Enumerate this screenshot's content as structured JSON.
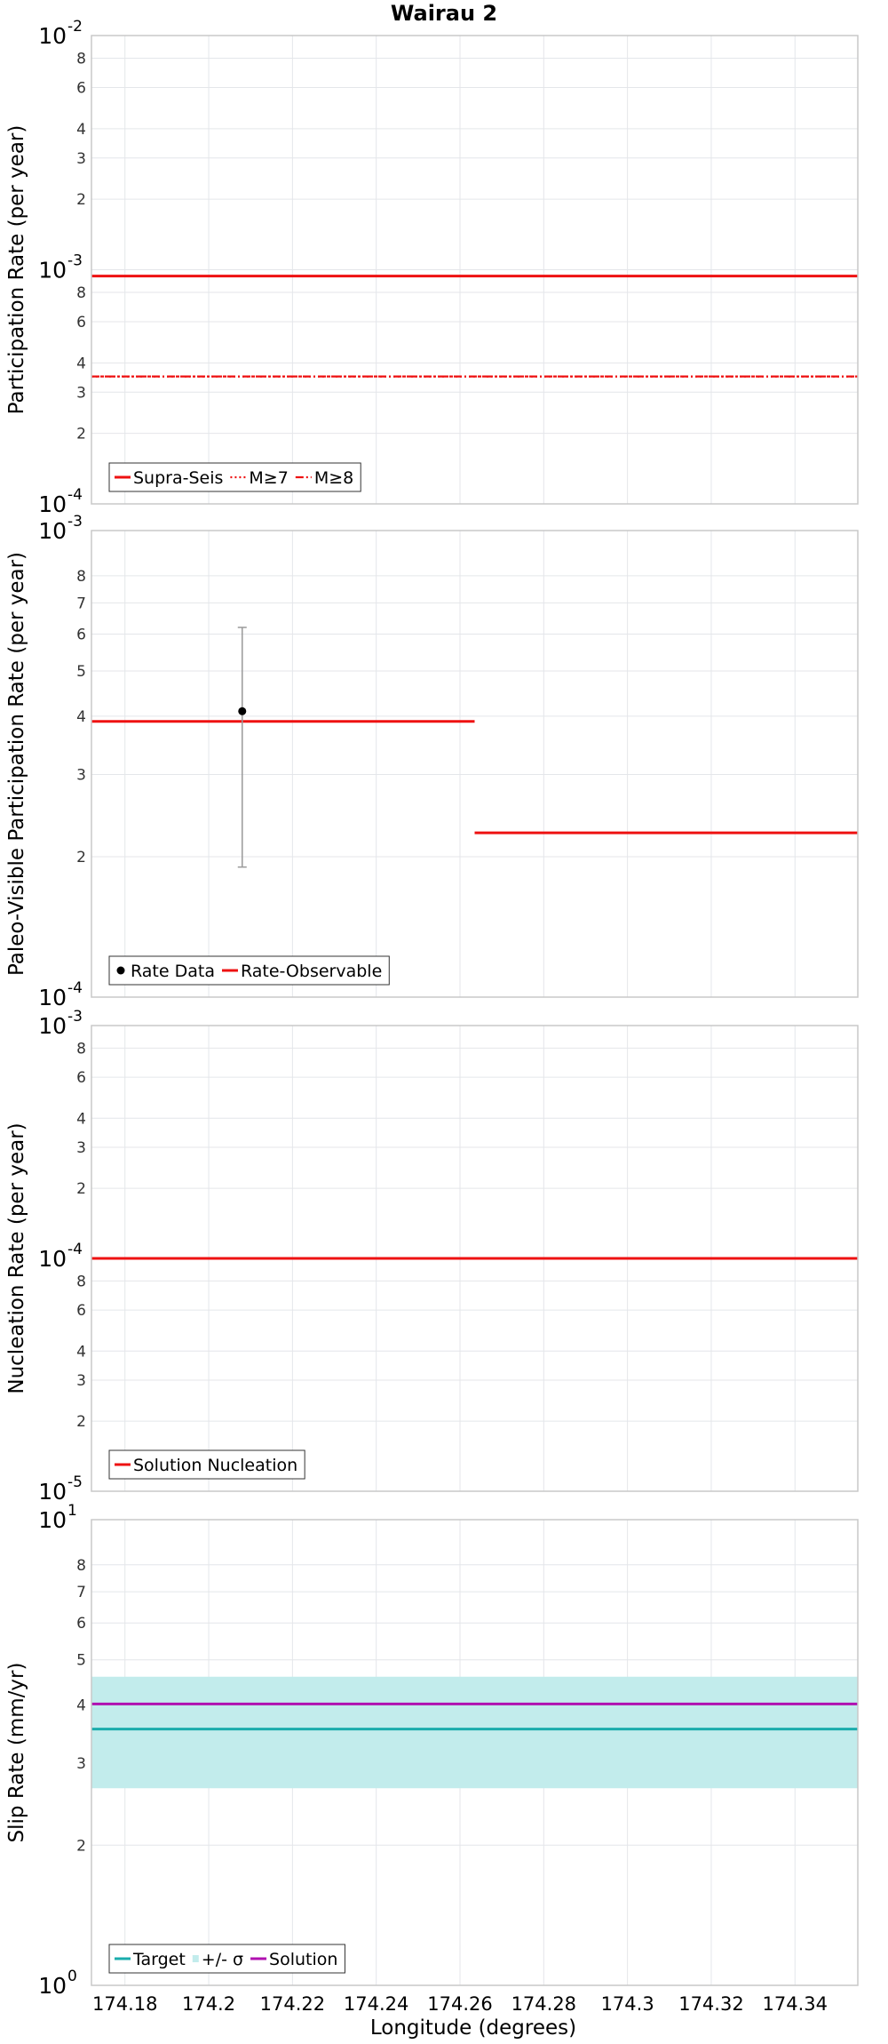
{
  "chart_data": [
    {
      "type": "line",
      "title": "Wairau 2",
      "ylabel": "Participation Rate (per year)",
      "xlabel": "",
      "yscale": "log",
      "ylim": [
        0.0001,
        0.01
      ],
      "xlim": [
        174.172,
        174.355
      ],
      "major_ticks": [
        {
          "v": 0.0001,
          "base": "10",
          "exp": "-4"
        },
        {
          "v": 0.001,
          "base": "10",
          "exp": "-3"
        },
        {
          "v": 0.01,
          "base": "10",
          "exp": "-2"
        }
      ],
      "minor_ticks": [
        {
          "v": 0.0002,
          "label": "2"
        },
        {
          "v": 0.0003,
          "label": "3"
        },
        {
          "v": 0.0004,
          "label": "4"
        },
        {
          "v": 0.0006,
          "label": "6"
        },
        {
          "v": 0.0008,
          "label": "8"
        },
        {
          "v": 0.002,
          "label": "2"
        },
        {
          "v": 0.003,
          "label": "3"
        },
        {
          "v": 0.004,
          "label": "4"
        },
        {
          "v": 0.006,
          "label": "6"
        },
        {
          "v": 0.008,
          "label": "8"
        }
      ],
      "series": [
        {
          "name": "Supra-Seis",
          "style": "solid",
          "color": "#ee1111",
          "segments": [
            {
              "x0": 174.172,
              "x1": 174.355,
              "y": 0.00094
            }
          ]
        },
        {
          "name": "M≥7",
          "style": "dotted",
          "color": "#ee1111",
          "segments": [
            {
              "x0": 174.172,
              "x1": 174.355,
              "y": 0.00035
            }
          ]
        },
        {
          "name": "M≥8",
          "style": "dashdot",
          "color": "#ee1111",
          "segments": [
            {
              "x0": 174.172,
              "x1": 174.355,
              "y": 0.00035
            }
          ]
        }
      ],
      "legend": [
        {
          "label": "Supra-Seis",
          "kind": "solid",
          "color": "#ee1111"
        },
        {
          "label": "M≥7",
          "kind": "dotted",
          "color": "#ee1111"
        },
        {
          "label": "M≥8",
          "kind": "dashdot",
          "color": "#ee1111"
        }
      ]
    },
    {
      "type": "line",
      "title": "",
      "ylabel": "Paleo-Visible Participation Rate (per year)",
      "xlabel": "",
      "yscale": "log",
      "ylim": [
        0.0001,
        0.001
      ],
      "xlim": [
        174.172,
        174.355
      ],
      "major_ticks": [
        {
          "v": 0.0001,
          "base": "10",
          "exp": "-4"
        },
        {
          "v": 0.001,
          "base": "10",
          "exp": "-3"
        }
      ],
      "minor_ticks": [
        {
          "v": 0.0002,
          "label": "2"
        },
        {
          "v": 0.0003,
          "label": "3"
        },
        {
          "v": 0.0004,
          "label": "4"
        },
        {
          "v": 0.0005,
          "label": "5"
        },
        {
          "v": 0.0006,
          "label": "6"
        },
        {
          "v": 0.0007,
          "label": "7"
        },
        {
          "v": 0.0008,
          "label": "8"
        }
      ],
      "series": [
        {
          "name": "Rate-Observable",
          "style": "solid",
          "color": "#ee1111",
          "segments": [
            {
              "x0": 174.172,
              "x1": 174.2635,
              "y": 0.00039
            },
            {
              "x0": 174.2635,
              "x1": 174.355,
              "y": 0.000225
            }
          ]
        }
      ],
      "points": [
        {
          "name": "Rate Data",
          "x": 174.208,
          "y": 0.00041,
          "ylo": 0.00019,
          "yhi": 0.00062
        }
      ],
      "legend": [
        {
          "label": "Rate Data",
          "kind": "dot",
          "color": "#000000"
        },
        {
          "label": "Rate-Observable",
          "kind": "solid",
          "color": "#ee1111"
        }
      ]
    },
    {
      "type": "line",
      "title": "",
      "ylabel": "Nucleation Rate (per year)",
      "xlabel": "",
      "yscale": "log",
      "ylim": [
        1e-05,
        0.001
      ],
      "xlim": [
        174.172,
        174.355
      ],
      "major_ticks": [
        {
          "v": 1e-05,
          "base": "10",
          "exp": "-5"
        },
        {
          "v": 0.0001,
          "base": "10",
          "exp": "-4"
        },
        {
          "v": 0.001,
          "base": "10",
          "exp": "-3"
        }
      ],
      "minor_ticks": [
        {
          "v": 2e-05,
          "label": "2"
        },
        {
          "v": 3e-05,
          "label": "3"
        },
        {
          "v": 4e-05,
          "label": "4"
        },
        {
          "v": 6e-05,
          "label": "6"
        },
        {
          "v": 8e-05,
          "label": "8"
        },
        {
          "v": 0.0002,
          "label": "2"
        },
        {
          "v": 0.0003,
          "label": "3"
        },
        {
          "v": 0.0004,
          "label": "4"
        },
        {
          "v": 0.0006,
          "label": "6"
        },
        {
          "v": 0.0008,
          "label": "8"
        }
      ],
      "series": [
        {
          "name": "Solution Nucleation",
          "style": "solid",
          "color": "#ee1111",
          "segments": [
            {
              "x0": 174.172,
              "x1": 174.355,
              "y": 0.0001
            }
          ]
        }
      ],
      "legend": [
        {
          "label": "Solution Nucleation",
          "kind": "solid",
          "color": "#ee1111"
        }
      ]
    },
    {
      "type": "line",
      "title": "",
      "ylabel": "Slip Rate (mm/yr)",
      "xlabel": "Longitude (degrees)",
      "yscale": "log",
      "ylim": [
        1,
        10
      ],
      "xlim": [
        174.172,
        174.355
      ],
      "major_ticks": [
        {
          "v": 1,
          "base": "10",
          "exp": "0"
        },
        {
          "v": 10,
          "base": "10",
          "exp": "1"
        }
      ],
      "minor_ticks": [
        {
          "v": 2,
          "label": "2"
        },
        {
          "v": 3,
          "label": "3"
        },
        {
          "v": 4,
          "label": "4"
        },
        {
          "v": 5,
          "label": "5"
        },
        {
          "v": 6,
          "label": "6"
        },
        {
          "v": 7,
          "label": "7"
        },
        {
          "v": 8,
          "label": "8"
        }
      ],
      "x_ticks": [
        "174.18",
        "174.2",
        "174.22",
        "174.24",
        "174.26",
        "174.28",
        "174.3",
        "174.32",
        "174.34"
      ],
      "x_tick_values": [
        174.18,
        174.2,
        174.22,
        174.24,
        174.26,
        174.28,
        174.3,
        174.32,
        174.34
      ],
      "band": {
        "name": "+/- σ",
        "lo": 2.65,
        "hi": 4.6,
        "color": "#c2ecec"
      },
      "series": [
        {
          "name": "Target",
          "style": "solid",
          "color": "#1aacac",
          "segments": [
            {
              "x0": 174.172,
              "x1": 174.355,
              "y": 3.55
            }
          ]
        },
        {
          "name": "Solution",
          "style": "solid",
          "color": "#b010b0",
          "segments": [
            {
              "x0": 174.172,
              "x1": 174.355,
              "y": 4.02
            }
          ]
        }
      ],
      "legend": [
        {
          "label": "Target",
          "kind": "solid",
          "color": "#1aacac"
        },
        {
          "label": "+/- σ",
          "kind": "band",
          "color": "#c2ecec"
        },
        {
          "label": "Solution",
          "kind": "solid",
          "color": "#b010b0"
        }
      ]
    }
  ]
}
